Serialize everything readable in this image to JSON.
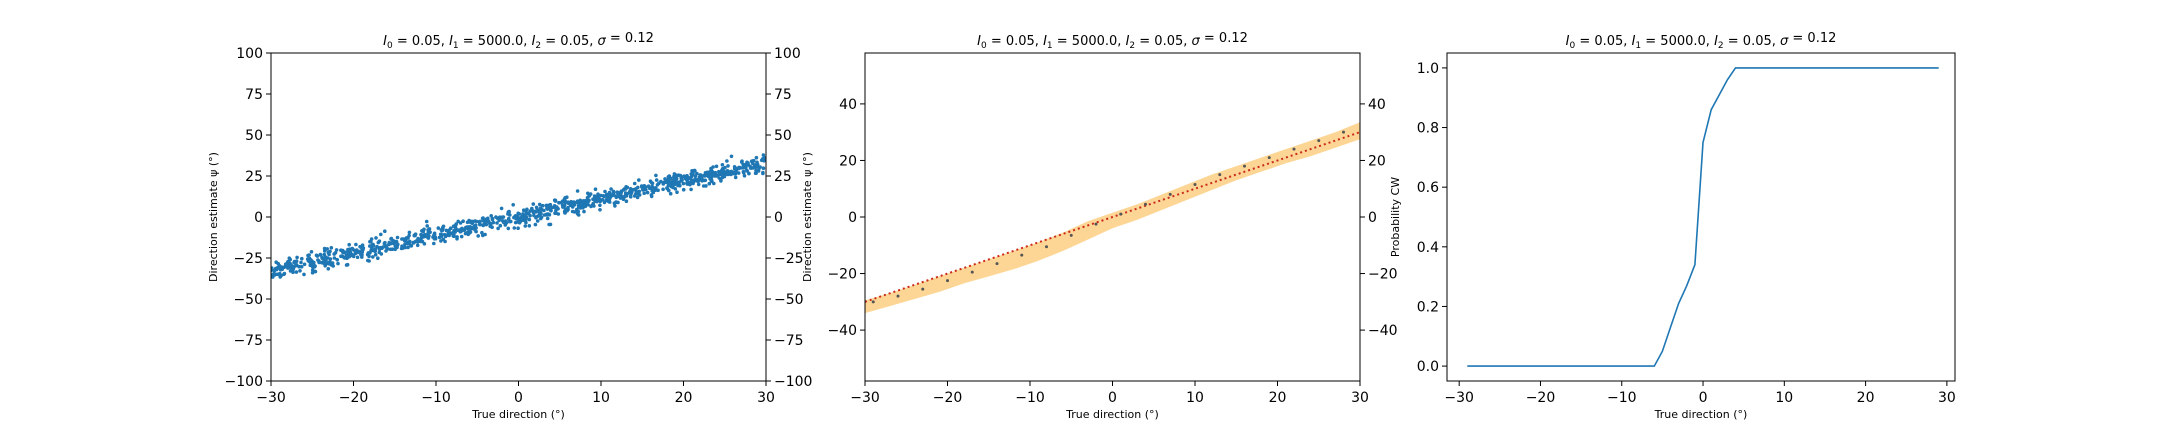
{
  "chart_data": [
    {
      "type": "scatter",
      "title": "$I_0 = 0.05$, $I_1 = 5000.0$, $I_2 = 0.05$, $\\sigma = 0.12$",
      "title_parts": {
        "I0": "I",
        "I0_sub": "0",
        "I0_val": " = 0.05, ",
        "I1": "I",
        "I1_sub": "1",
        "I1_val": " = 5000.0, ",
        "I2": "I",
        "I2_sub": "2",
        "I2_val": " = 0.05, ",
        "sigma": "σ",
        "sigma_val": " = 0.12"
      },
      "xlabel": "True direction (°)",
      "ylabel": "Direction estimate ψ (°)",
      "xlim": [
        -30,
        30
      ],
      "ylim": [
        -100,
        100
      ],
      "xticks": [
        -30,
        -20,
        -10,
        0,
        10,
        20,
        30
      ],
      "yticks": [
        -100,
        -75,
        -50,
        -25,
        0,
        25,
        50,
        75,
        100
      ],
      "right_yticks": [
        -100,
        -75,
        -50,
        -25,
        0,
        25,
        50,
        75,
        100
      ],
      "series": [
        {
          "description_fit": {
            "slope": 1.08,
            "intercept": 0.0,
            "spread_sd": 2.8,
            "n_points": 1000
          },
          "color": "#1f77b4"
        }
      ]
    },
    {
      "type": "line",
      "title": "$I_0 = 0.05$, $I_1 = 5000.0$, $I_2 = 0.05$, $\\sigma = 0.12$",
      "xlabel": "True direction (°)",
      "ylabel": "Direction estimate ψ (°)",
      "xlim": [
        -30,
        30
      ],
      "ylim": [
        -58,
        58
      ],
      "xticks": [
        -30,
        -20,
        -10,
        0,
        10,
        20,
        30
      ],
      "yticks": [
        -40,
        -20,
        0,
        20,
        40
      ],
      "right_yticks": [
        -40,
        -20,
        0,
        20,
        40
      ],
      "band": {
        "color": "#fdd28a",
        "x": [
          -30,
          -27,
          -24,
          -21,
          -18,
          -15,
          -12,
          -9,
          -6,
          -3,
          0,
          3,
          6,
          9,
          12,
          15,
          18,
          21,
          24,
          27,
          30
        ],
        "lower": [
          -34,
          -31.5,
          -29,
          -26.5,
          -23.5,
          -21,
          -18.5,
          -15.5,
          -12,
          -8,
          -4,
          -1,
          2.5,
          6,
          9.5,
          13,
          16,
          19,
          21.5,
          24.5,
          27.5
        ],
        "upper": [
          -29.5,
          -27,
          -24,
          -21,
          -18,
          -15,
          -12,
          -9,
          -5.5,
          -1.5,
          1.5,
          4.5,
          8,
          11.5,
          15,
          18,
          21,
          24,
          27,
          30,
          33.5
        ]
      },
      "dots": {
        "color": "#555555",
        "x": [
          -29,
          -26,
          -23,
          -20,
          -17,
          -14,
          -11,
          -8,
          -5,
          -2,
          1,
          4,
          7,
          10,
          13,
          16,
          19,
          22,
          25,
          28
        ],
        "y": [
          -30,
          -28,
          -25.5,
          -22.5,
          -19.5,
          -16.5,
          -13.5,
          -10.5,
          -6.5,
          -2.5,
          1,
          4.5,
          8,
          11.5,
          15,
          18,
          21,
          24,
          27,
          30
        ]
      },
      "identity_line": {
        "color": "#cc2a1a",
        "x": [
          -30,
          30
        ],
        "y": [
          -30,
          30
        ],
        "style": "dotted"
      }
    },
    {
      "type": "line",
      "title": "$I_0 = 0.05$, $I_1 = 5000.0$, $I_2 = 0.05$, $\\sigma = 0.12$",
      "xlabel": "True direction (°)",
      "ylabel": "Probability CW",
      "xlim": [
        -31.5,
        31
      ],
      "ylim": [
        -0.05,
        1.05
      ],
      "xticks": [
        -30,
        -20,
        -10,
        0,
        10,
        20,
        30
      ],
      "yticks": [
        0.0,
        0.2,
        0.4,
        0.6,
        0.8,
        1.0
      ],
      "ytick_labels": [
        "0.0",
        "0.2",
        "0.4",
        "0.6",
        "0.8",
        "1.0"
      ],
      "series": [
        {
          "color": "#1f77b4",
          "x": [
            -29,
            -6,
            -5,
            -4,
            -3,
            -2,
            -1,
            0,
            1,
            2,
            3,
            4,
            29
          ],
          "y": [
            0,
            0,
            0.05,
            0.13,
            0.21,
            0.27,
            0.34,
            0.75,
            0.86,
            0.91,
            0.96,
            1.0,
            1.0
          ]
        }
      ]
    }
  ]
}
